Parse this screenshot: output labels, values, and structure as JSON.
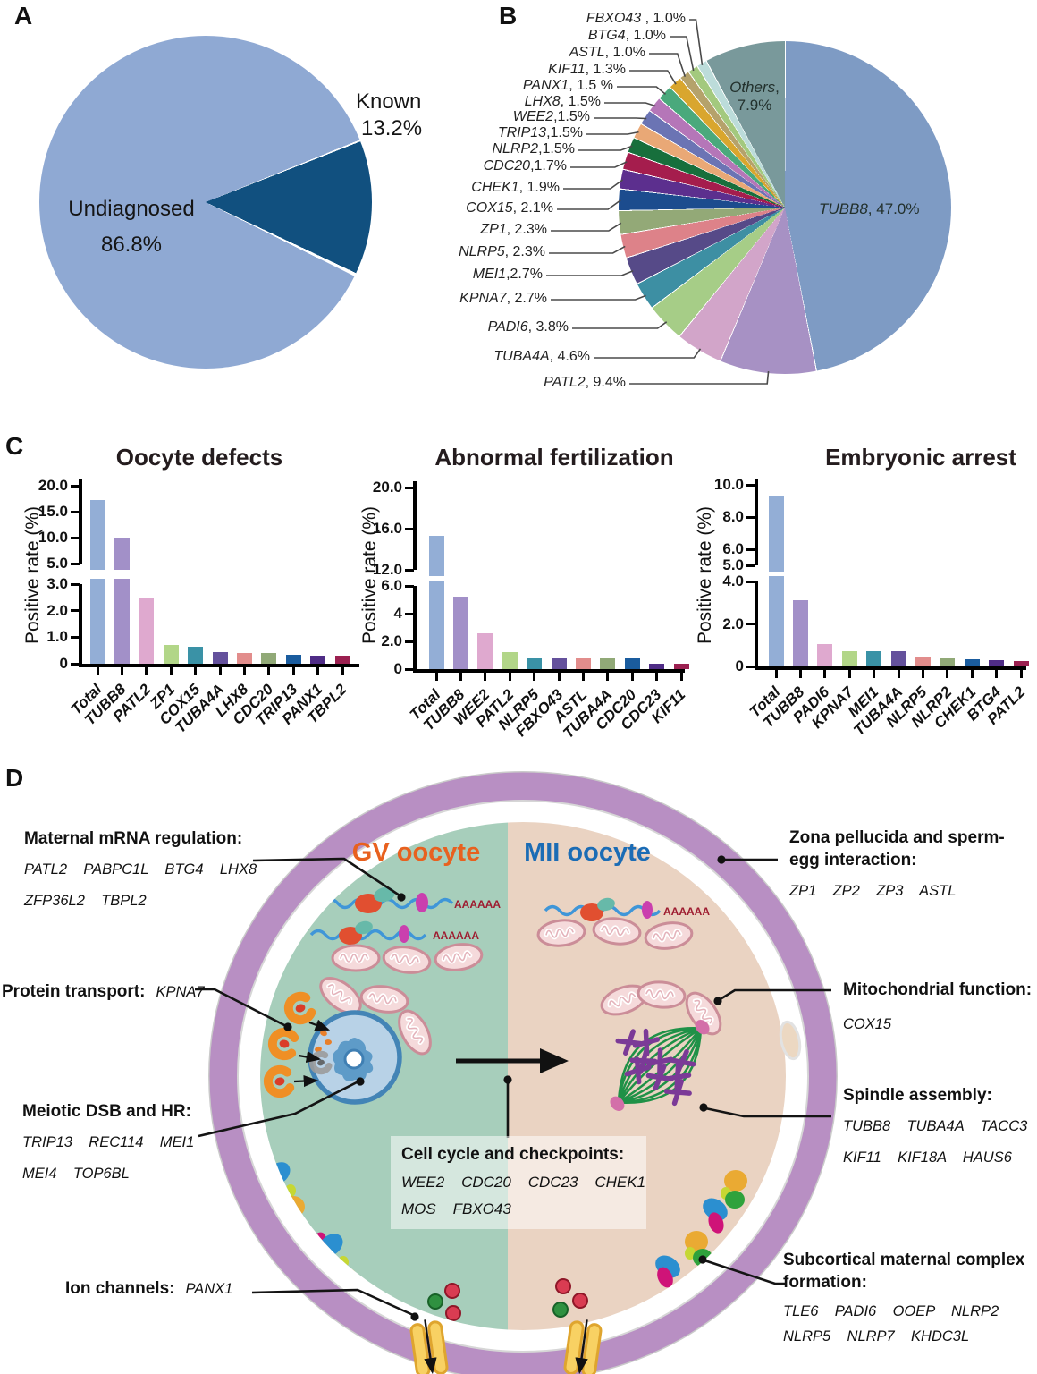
{
  "figure": {
    "panel_letters": [
      "A",
      "B",
      "C",
      "D"
    ]
  },
  "chart_data": [
    {
      "panel": "A",
      "type": "pie",
      "start_angle_deg": 68,
      "slices": [
        {
          "label": "Undiagnosed",
          "value": 86.8,
          "pct": "86.8%",
          "color": "#8fa9d3"
        },
        {
          "label": "Known",
          "value": 13.2,
          "pct": "13.2%",
          "color": "#11507f"
        }
      ]
    },
    {
      "panel": "B",
      "type": "pie",
      "order": "clockwise from 12 o'clock",
      "slices": [
        {
          "name": "TUBB8",
          "value": 47.0,
          "sep": ",  ",
          "pct": "47.0%",
          "color": "#7e9bc4",
          "label_inside": true
        },
        {
          "name": "PATL2",
          "value": 9.4,
          "sep": ",  ",
          "pct": "9.4%",
          "color": "#a791c4"
        },
        {
          "name": "TUBA4A",
          "value": 4.6,
          "sep": ",  ",
          "pct": "4.6%",
          "color": "#d2a5c9"
        },
        {
          "name": "PADI6",
          "value": 3.8,
          "sep": ",  ",
          "pct": "3.8%",
          "color": "#a6cd87"
        },
        {
          "name": "KPNA7",
          "value": 2.7,
          "sep": ",  ",
          "pct": "2.7%",
          "color": "#3d8fa3"
        },
        {
          "name": "MEI1",
          "value": 2.7,
          "sep": ",",
          "pct": "2.7%",
          "color": "#564a88"
        },
        {
          "name": "NLRP5",
          "value": 2.3,
          "sep": ", ",
          "pct": "2.3%",
          "color": "#dd8289"
        },
        {
          "name": "ZP1",
          "value": 2.3,
          "sep": ", ",
          "pct": "2.3%",
          "color": "#93a977"
        },
        {
          "name": "COX15",
          "value": 2.1,
          "sep": ", ",
          "pct": "2.1%",
          "color": "#1c4c8e"
        },
        {
          "name": "CHEK1",
          "value": 1.9,
          "sep": ", ",
          "pct": "1.9%",
          "color": "#5c2f8e"
        },
        {
          "name": "CDC20",
          "value": 1.7,
          "sep": ",",
          "pct": "1.7%",
          "color": "#a51d4d"
        },
        {
          "name": "NLRP2",
          "value": 1.5,
          "sep": ",",
          "pct": "1.5%",
          "color": "#176f3c"
        },
        {
          "name": "TRIP13",
          "value": 1.5,
          "sep": ",",
          "pct": "1.5%",
          "color": "#e9a876"
        },
        {
          "name": "WEE2",
          "value": 1.5,
          "sep": ",",
          "pct": "1.5%",
          "color": "#6b74b4"
        },
        {
          "name": "LHX8",
          "value": 1.5,
          "sep": ",  ",
          "pct": "1.5%",
          "color": "#b576b8"
        },
        {
          "name": "PANX1",
          "value": 1.5,
          "sep": ", ",
          "pct": "1.5 %",
          "color": "#4aa97c"
        },
        {
          "name": "KIF11",
          "value": 1.3,
          "sep": ",  ",
          "pct": "1.3%",
          "color": "#d9a62e"
        },
        {
          "name": "ASTL",
          "value": 1.0,
          "sep": ", ",
          "pct": "1.0%",
          "color": "#b5a26b"
        },
        {
          "name": "BTG4",
          "value": 1.0,
          "sep": ",  ",
          "pct": "1.0%",
          "color": "#a3c97e"
        },
        {
          "name": "FBXO43",
          "value": 1.0,
          "sep": " , ",
          "pct": "1.0%",
          "color": "#bcdcda"
        },
        {
          "name": "Others",
          "value": 7.9,
          "sep": ",",
          "pct": "7.9%",
          "color": "#79999b",
          "label_inside": true
        }
      ]
    },
    {
      "panel": "C",
      "type": "bar",
      "title": "Oocyte defects",
      "ylabel": "Positive rate (%)",
      "categories": [
        "Total",
        "TUBB8",
        "PATL2",
        "ZP1",
        "COX15",
        "TUBA4A",
        "LHX8",
        "CDC20",
        "TRIP13",
        "PANX1",
        "TBPL2"
      ],
      "values": [
        17.3,
        10.0,
        2.45,
        0.7,
        0.65,
        0.45,
        0.4,
        0.4,
        0.35,
        0.3,
        0.3
      ],
      "colors": [
        "#93aed6",
        "#a290c8",
        "#dfa9cf",
        "#b2d688",
        "#3a92a6",
        "#64519c",
        "#e28d8c",
        "#91a977",
        "#1a5c9e",
        "#4f2c86",
        "#9b2050"
      ],
      "axis_lower": {
        "min": 0,
        "max": 3,
        "ticks": [
          {
            "label": "3.0",
            "v": 3
          },
          {
            "label": "2.0",
            "v": 2
          },
          {
            "label": "1.0",
            "v": 1
          },
          {
            "label": "0",
            "v": 0
          }
        ]
      },
      "axis_upper": {
        "min": 5,
        "max": 20,
        "ticks": [
          {
            "label": "20.0",
            "v": 20
          },
          {
            "label": "15.0",
            "v": 15
          },
          {
            "label": "10.0",
            "v": 10
          },
          {
            "label": "5.0",
            "v": 5
          }
        ]
      }
    },
    {
      "panel": "C",
      "type": "bar",
      "title": "Abnormal fertilization",
      "ylabel": "Positive rate (%)",
      "categories": [
        "Total",
        "TUBB8",
        "WEE2",
        "PATL2",
        "NLRP5",
        "FBXO43",
        "ASTL",
        "TUBA4A",
        "CDC20",
        "CDC23",
        "KIF11"
      ],
      "values": [
        15.3,
        5.2,
        2.6,
        1.2,
        0.8,
        0.8,
        0.75,
        0.75,
        0.8,
        0.4,
        0.4
      ],
      "colors": [
        "#93aed6",
        "#a290c8",
        "#dfa9cf",
        "#b2d688",
        "#3a92a6",
        "#64519c",
        "#e28d8c",
        "#91a977",
        "#1a5c9e",
        "#4f2c86",
        "#9b2050"
      ],
      "axis_lower": {
        "min": 0,
        "max": 6,
        "ticks": [
          {
            "label": "6.0",
            "v": 6
          },
          {
            "label": "4",
            "v": 4
          },
          {
            "label": "2.0",
            "v": 2
          },
          {
            "label": "0",
            "v": 0
          }
        ]
      },
      "axis_upper": {
        "min": 12,
        "max": 20,
        "ticks": [
          {
            "label": "20.0",
            "v": 20
          },
          {
            "label": "16.0",
            "v": 16
          },
          {
            "label": "12.0",
            "v": 12
          }
        ]
      }
    },
    {
      "panel": "C",
      "type": "bar",
      "title": "Embryonic arrest",
      "ylabel": "Positive rate (%)",
      "categories": [
        "Total",
        "TUBB8",
        "PADI6",
        "KPNA7",
        "MEI1",
        "TUBA4A",
        "NLRP5",
        "NLRP2",
        "CHEK1",
        "BTG4",
        "PATL2"
      ],
      "values": [
        9.3,
        3.1,
        1.05,
        0.7,
        0.7,
        0.7,
        0.45,
        0.38,
        0.32,
        0.28,
        0.25
      ],
      "colors": [
        "#93aed6",
        "#a290c8",
        "#dfa9cf",
        "#b2d688",
        "#3a92a6",
        "#64519c",
        "#e28d8c",
        "#91a977",
        "#1a5c9e",
        "#4f2c86",
        "#9b2050"
      ],
      "axis_lower": {
        "min": 0,
        "max": 4,
        "ticks": [
          {
            "label": "4.0",
            "v": 4
          },
          {
            "label": "2.0",
            "v": 2
          },
          {
            "label": "0",
            "v": 0
          }
        ]
      },
      "axis_upper": {
        "min": 5,
        "max": 10,
        "ticks": [
          {
            "label": "10.0",
            "v": 10
          },
          {
            "label": "8.0",
            "v": 8
          },
          {
            "label": "6.0",
            "v": 6
          },
          {
            "label": "5.0",
            "v": 5
          }
        ]
      }
    }
  ],
  "panelD": {
    "gv_label": "GV oocyte",
    "mii_label": "MII oocyte",
    "gv_color": "#e8611f",
    "mii_color": "#1b6cb5",
    "zona_color": "#b88fc3",
    "poly_a": "AAAAAA",
    "annotations": {
      "maternal": {
        "title": "Maternal mRNA regulation:",
        "lines": [
          [
            "PATL2",
            "PABPC1L",
            "BTG4",
            "LHX8"
          ],
          [
            "ZFP36L2",
            "TBPL2"
          ]
        ]
      },
      "protein": {
        "title": "Protein transport:",
        "gene": "KPNA7"
      },
      "meiotic": {
        "title": "Meiotic DSB and HR:",
        "lines": [
          [
            "TRIP13",
            "REC114",
            "MEI1"
          ],
          [
            "MEI4",
            "TOP6BL"
          ]
        ]
      },
      "ion": {
        "title": "Ion channels:",
        "gene": "PANX1"
      },
      "zona": {
        "title": "Zona pellucida and sperm-egg interaction:",
        "lines": [
          [
            "ZP1",
            "ZP2",
            "ZP3",
            "ASTL"
          ]
        ]
      },
      "mito": {
        "title": "Mitochondrial function:",
        "lines": [
          [
            "COX15"
          ]
        ]
      },
      "spindle": {
        "title": "Spindle assembly:",
        "lines": [
          [
            "TUBB8",
            "TUBA4A",
            "TACC3"
          ],
          [
            "KIF11",
            "KIF18A",
            "HAUS6"
          ]
        ]
      },
      "subcortical": {
        "title": "Subcortical maternal complex formation:",
        "lines": [
          [
            "TLE6",
            "PADI6",
            "OOEP",
            "NLRP2"
          ],
          [
            "NLRP5",
            "NLRP7",
            "KHDC3L"
          ]
        ]
      },
      "cellcycle": {
        "title": "Cell cycle and checkpoints:",
        "lines": [
          [
            "WEE2",
            "CDC20",
            "CDC23",
            "CHEK1"
          ],
          [
            "MOS",
            "FBXO43"
          ]
        ]
      }
    }
  }
}
